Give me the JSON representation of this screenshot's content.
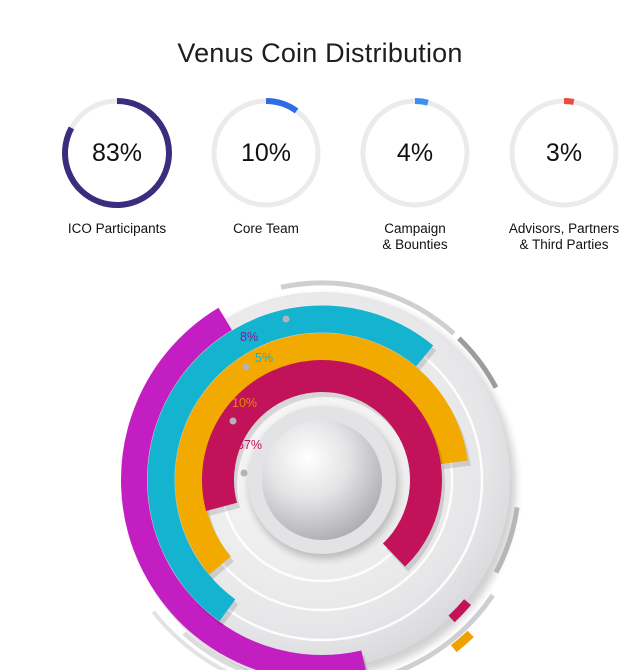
{
  "page": {
    "title": "Venus Coin Distribution"
  },
  "colors": {
    "ring_track": "#ebebeb",
    "ring_accents": [
      "#3a2d7e",
      "#2f6be6",
      "#3d8ff0",
      "#ef4b3a"
    ],
    "radial_series": [
      "#c2135a",
      "#f2a900",
      "#14b3cf",
      "#c21ec2"
    ]
  },
  "chart_data": [
    {
      "type": "donut",
      "style": "progress-rings",
      "title": "Venus Coin Distribution",
      "items": [
        {
          "value": 83,
          "display": "83%",
          "label": "ICO Participants"
        },
        {
          "value": 10,
          "display": "10%",
          "label": "Core Team"
        },
        {
          "value": 4,
          "display": "4%",
          "label": "Campaign\n& Bounties"
        },
        {
          "value": 3,
          "display": "3%",
          "label": "Advisors, Partners\n& Third Parties"
        }
      ]
    },
    {
      "type": "radial-bar",
      "series": [
        {
          "value": 67,
          "display": "67%",
          "sweep": 0.67
        },
        {
          "value": 10,
          "display": "10%",
          "sweep": 0.59
        },
        {
          "value": 5,
          "display": "5%",
          "sweep": 0.51
        },
        {
          "value": 8,
          "display": "8%",
          "sweep": 0.45
        }
      ]
    }
  ]
}
